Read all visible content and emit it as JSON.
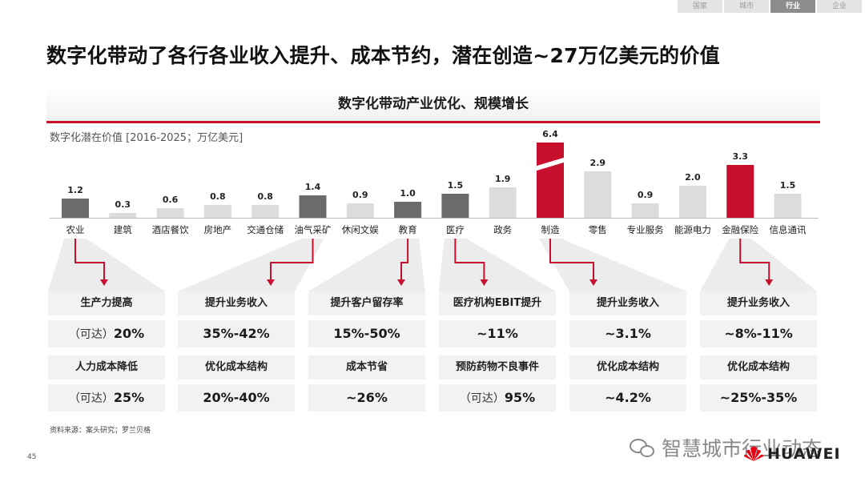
{
  "nav": {
    "tabs": [
      {
        "label": "国家",
        "active": false
      },
      {
        "label": "城市",
        "active": false
      },
      {
        "label": "行业",
        "active": true
      },
      {
        "label": "企业",
        "active": false
      }
    ]
  },
  "page": {
    "title": "数字化带动了各行各业收入提升、成本节约，潜在创造~27万亿美元的价值",
    "banner": "数字化带动产业优化、规模增长",
    "source": "资料来源：案头研究；罗兰贝格",
    "page_number": "45"
  },
  "watermark": {
    "text": "智慧城市行业动态",
    "icon": "wechat-icon"
  },
  "brand": {
    "name": "HUAWEI",
    "icon": "huawei-petal-logo",
    "color": "#e60012"
  },
  "colors": {
    "dark": "#6b6b6b",
    "light": "#dcdcdc",
    "accent": "#c8102e",
    "panel": "#f2f2f2"
  },
  "chart_data": {
    "type": "bar",
    "ylabel": "数字化潜在价值 [2016-2025；万亿美元]",
    "ylim": [
      0,
      6.4
    ],
    "axis_break_on": "制造",
    "categories": [
      "农业",
      "建筑",
      "酒店餐饮",
      "房地产",
      "交通仓储",
      "油气采矿",
      "休闲文娱",
      "教育",
      "医疗",
      "政务",
      "制造",
      "零售",
      "专业服务",
      "能源电力",
      "金融保险",
      "信息通讯"
    ],
    "values": [
      1.2,
      0.3,
      0.6,
      0.8,
      0.8,
      1.4,
      0.9,
      1.0,
      1.5,
      1.9,
      6.4,
      2.9,
      0.9,
      2.0,
      3.3,
      1.5
    ],
    "value_labels": [
      "1.2",
      "0.3",
      "0.6",
      "0.8",
      "0.8",
      "1.4",
      "0.9",
      "1.0",
      "1.5",
      "1.9",
      "6.4",
      "2.9",
      "0.9",
      "2.0",
      "3.3",
      "1.5"
    ],
    "highlight": [
      "dark",
      "light",
      "light",
      "light",
      "light",
      "dark",
      "light",
      "dark",
      "dark",
      "light",
      "accent",
      "light",
      "light",
      "light",
      "accent",
      "light"
    ]
  },
  "impact_groups": [
    {
      "category": "农业",
      "items": [
        {
          "label": "生产力提高",
          "prefix": "（可达）",
          "value": "20%"
        },
        {
          "label": "人力成本降低",
          "prefix": "（可达）",
          "value": "25%"
        }
      ]
    },
    {
      "category": "油气采矿",
      "items": [
        {
          "label": "提升业务收入",
          "prefix": "",
          "value": "35%-42%"
        },
        {
          "label": "优化成本结构",
          "prefix": "",
          "value": "20%-40%"
        }
      ]
    },
    {
      "category": "教育",
      "items": [
        {
          "label": "提升客户留存率",
          "prefix": "",
          "value": "15%-50%"
        },
        {
          "label": "成本节省",
          "prefix": "",
          "value": "~26%"
        }
      ]
    },
    {
      "category": "医疗",
      "items": [
        {
          "label": "医疗机构EBIT提升",
          "prefix": "",
          "value": "~11%"
        },
        {
          "label": "预防药物不良事件",
          "prefix": "（可达）",
          "value": "95%"
        }
      ]
    },
    {
      "category": "制造",
      "items": [
        {
          "label": "提升业务收入",
          "prefix": "",
          "value": "~3.1%"
        },
        {
          "label": "优化成本结构",
          "prefix": "",
          "value": "~4.2%"
        }
      ]
    },
    {
      "category": "金融保险",
      "items": [
        {
          "label": "提升业务收入",
          "prefix": "",
          "value": "~8%-11%"
        },
        {
          "label": "优化成本结构",
          "prefix": "",
          "value": "~25%-35%"
        }
      ]
    }
  ]
}
